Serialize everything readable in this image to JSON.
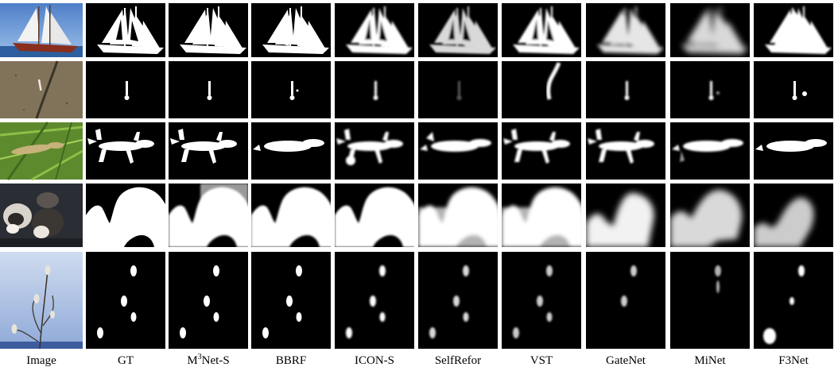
{
  "columns": [
    {
      "prefix": "Image",
      "sup": "",
      "suffix": ""
    },
    {
      "prefix": "GT",
      "sup": "",
      "suffix": ""
    },
    {
      "prefix": "M",
      "sup": "3",
      "suffix": "Net-S"
    },
    {
      "prefix": "BBRF",
      "sup": "",
      "suffix": ""
    },
    {
      "prefix": "ICON-S",
      "sup": "",
      "suffix": ""
    },
    {
      "prefix": "SelfRefor",
      "sup": "",
      "suffix": ""
    },
    {
      "prefix": "VST",
      "sup": "",
      "suffix": ""
    },
    {
      "prefix": "GateNet",
      "sup": "",
      "suffix": ""
    },
    {
      "prefix": "MiNet",
      "sup": "",
      "suffix": ""
    },
    {
      "prefix": "F3Net",
      "sup": "",
      "suffix": ""
    }
  ],
  "rows": [
    {
      "subject": "sailboat"
    },
    {
      "subject": "cigarette-butt"
    },
    {
      "subject": "lizard"
    },
    {
      "subject": "husky-dogs"
    },
    {
      "subject": "birds-on-branches"
    }
  ]
}
